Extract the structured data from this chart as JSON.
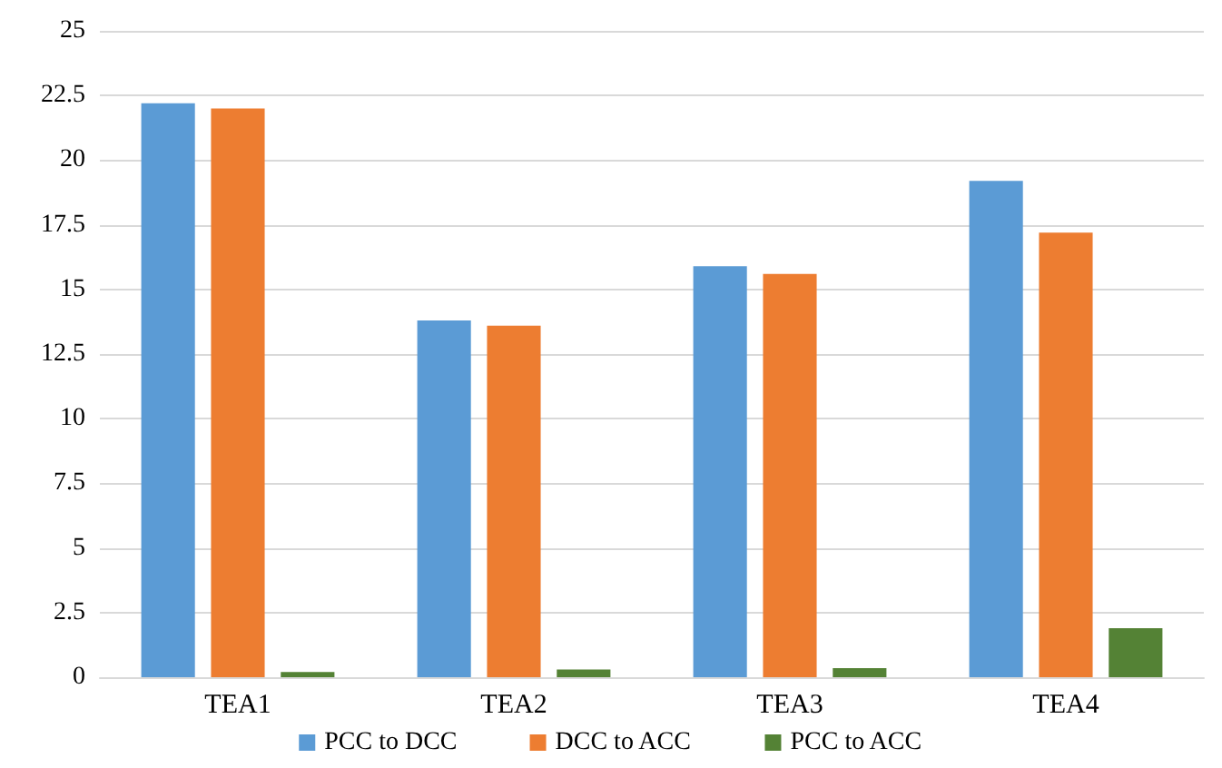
{
  "chart_data": {
    "type": "bar",
    "categories": [
      "TEA1",
      "TEA2",
      "TEA3",
      "TEA4"
    ],
    "series": [
      {
        "name": "PCC to DCC",
        "color": "#5b9bd5",
        "values": [
          22.2,
          13.8,
          15.9,
          19.2
        ]
      },
      {
        "name": "DCC to ACC",
        "color": "#ed7d31",
        "values": [
          22.0,
          13.6,
          15.6,
          17.2
        ]
      },
      {
        "name": "PCC to ACC",
        "color": "#548235",
        "values": [
          0.2,
          0.3,
          0.35,
          1.9
        ]
      }
    ],
    "ylim": [
      0,
      25
    ],
    "yticks": [
      0,
      2.5,
      5,
      7.5,
      10,
      12.5,
      15,
      17.5,
      20,
      22.5,
      25
    ],
    "grid": "y",
    "legend": "bottom"
  }
}
